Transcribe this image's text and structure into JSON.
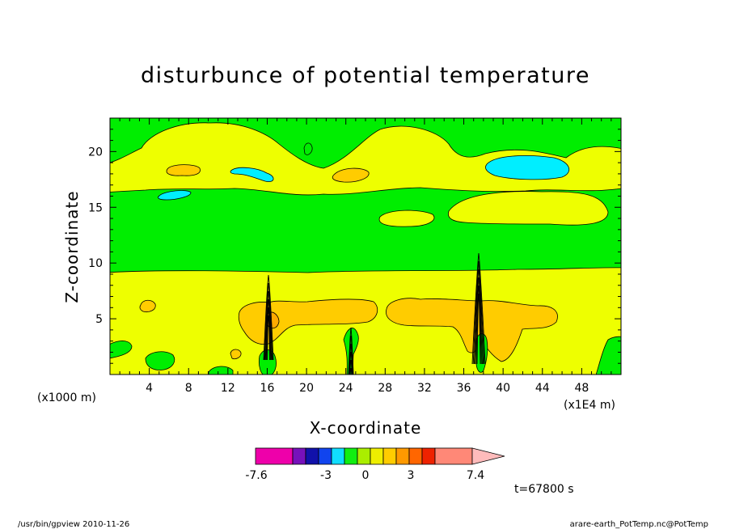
{
  "chart_data": {
    "type": "heatmap",
    "title": "disturbunce of potential temperature",
    "xlabel": "X-coordinate",
    "ylabel": "Z-coordinate",
    "x_unit_left": "(x1000 m)",
    "x_unit_right": "(x1E4 m)",
    "xlim": [
      0,
      52
    ],
    "ylim": [
      0,
      23
    ],
    "x_ticks": [
      "4",
      "8",
      "12",
      "16",
      "20",
      "24",
      "28",
      "32",
      "36",
      "40",
      "44",
      "48"
    ],
    "x_tick_values": [
      4,
      8,
      12,
      16,
      20,
      24,
      28,
      32,
      36,
      40,
      44,
      48
    ],
    "y_ticks": [
      "5",
      "10",
      "15",
      "20"
    ],
    "y_tick_values": [
      5,
      10,
      15,
      20
    ],
    "colorbar": {
      "labels": [
        "-7.6",
        "-3",
        "0",
        "3",
        "7.4"
      ],
      "colors": [
        "#ee00aa",
        "#7711bb",
        "#1111aa",
        "#1144ee",
        "#11ddff",
        "#11ee11",
        "#aaee00",
        "#eeee00",
        "#ffcc00",
        "#ff9900",
        "#ff6600",
        "#ee2200",
        "#ff8877",
        "#ffbbbb"
      ]
    },
    "field_colors": {
      "green": "#00ee00",
      "yellow": "#eeff00",
      "pale_yellow": "#ffff40",
      "orange": "#ffcc00",
      "deep_orange": "#ffaa00",
      "cyan": "#00eeff"
    },
    "time_label": "t=67800 s"
  },
  "footer": {
    "left": "/usr/bin/gpview  2010-11-26",
    "right": "arare-earth_PotTemp.nc@PotTemp"
  }
}
